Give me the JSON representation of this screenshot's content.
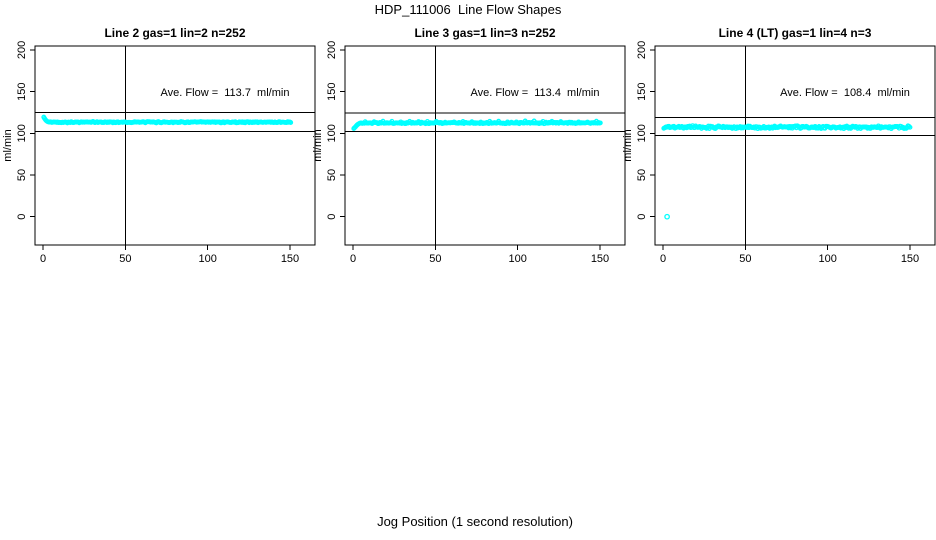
{
  "title": "HDP_111006  Line Flow Shapes",
  "xlabel": "Jog Position (1 second resolution)",
  "colors": {
    "points": "#00FFFF",
    "axis": "#000000",
    "background": "#FFFFFF"
  },
  "chart_data": [
    {
      "type": "scatter",
      "title": "Line 2 gas=1 lin=2 n=252",
      "annotation": "Ave. Flow =  113.7  ml/min",
      "ave_flow": 113.7,
      "ave_flow_units": "ml/min",
      "n": 252,
      "gas": 1,
      "lin": 2,
      "ylabel": "ml/min",
      "xticks": [
        0,
        50,
        100,
        150
      ],
      "yticks": [
        0,
        50,
        100,
        150,
        200
      ],
      "xlim": [
        -5,
        165
      ],
      "ylim": [
        -34,
        205
      ],
      "vline_x": 50,
      "hlines": [
        125.1,
        102.3
      ],
      "marker": "open-circle",
      "point_color": "#00FFFF",
      "lead_in": [
        [
          0.5,
          119.5
        ],
        [
          1,
          117.8
        ],
        [
          1.5,
          116.3
        ],
        [
          2,
          115.2
        ],
        [
          2.5,
          114.4
        ],
        [
          3,
          113.9
        ],
        [
          3.7,
          113.6
        ]
      ],
      "band": {
        "x_from": 4,
        "x_to": 150.5,
        "value": 113.4,
        "jitter": 0.9,
        "x_step": 0.6
      },
      "spike_every": 0,
      "spike_size": 0,
      "outliers": []
    },
    {
      "type": "scatter",
      "title": "Line 3 gas=1 lin=3 n=252",
      "annotation": "Ave. Flow =  113.4  ml/min",
      "ave_flow": 113.4,
      "ave_flow_units": "ml/min",
      "n": 252,
      "gas": 1,
      "lin": 3,
      "ylabel": "ml/min",
      "xticks": [
        0,
        50,
        100,
        150
      ],
      "yticks": [
        0,
        50,
        100,
        150,
        200
      ],
      "xlim": [
        -5,
        165
      ],
      "ylim": [
        -34,
        205
      ],
      "vline_x": 50,
      "hlines": [
        124.7,
        102.1
      ],
      "marker": "open-circle",
      "point_color": "#00FFFF",
      "lead_in": [
        [
          0.5,
          105.8
        ],
        [
          1,
          106.8
        ],
        [
          1.5,
          107.9
        ],
        [
          2,
          109
        ],
        [
          2.5,
          110
        ],
        [
          3,
          110.9
        ],
        [
          3.5,
          111.5
        ],
        [
          4,
          112
        ],
        [
          4.5,
          112.3
        ]
      ],
      "band": {
        "x_from": 5,
        "x_to": 150.5,
        "value": 112.5,
        "jitter": 1.0,
        "x_step": 0.6
      },
      "spike_every": 9,
      "spike_size": 1.5,
      "outliers": []
    },
    {
      "type": "scatter",
      "title": "Line 4 (LT) gas=1 lin=4 n=3",
      "annotation": "Ave. Flow =  108.4  ml/min",
      "ave_flow": 108.4,
      "ave_flow_units": "ml/min",
      "n": 3,
      "gas": 1,
      "lin": 4,
      "ylabel": "ml/min",
      "xticks": [
        0,
        50,
        100,
        150
      ],
      "yticks": [
        0,
        50,
        100,
        150,
        200
      ],
      "xlim": [
        -5,
        165
      ],
      "ylim": [
        -34,
        205
      ],
      "vline_x": 50,
      "hlines": [
        119.2,
        97.6
      ],
      "marker": "open-circle",
      "point_color": "#00FFFF",
      "lead_in": [
        [
          0.5,
          106
        ],
        [
          1,
          106.6
        ],
        [
          1.5,
          107
        ]
      ],
      "band": {
        "x_from": 1.8,
        "x_to": 150.5,
        "value": 107.4,
        "jitter": 1.9,
        "x_step": 0.6
      },
      "spike_every": 0,
      "spike_size": 0,
      "outliers": [
        [
          2.5,
          0
        ]
      ]
    }
  ]
}
